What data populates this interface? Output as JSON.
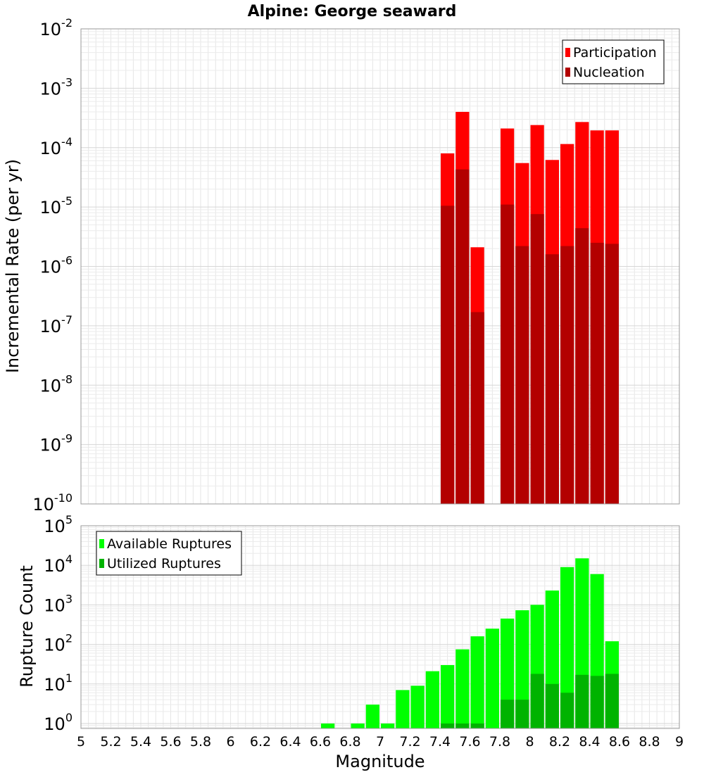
{
  "chart_data": [
    {
      "type": "bar",
      "title": "Alpine: George seaward",
      "xlabel": "",
      "ylabel": "Incremental Rate (per yr)",
      "xlim": [
        5,
        9
      ],
      "ylim": [
        1e-10,
        0.01
      ],
      "yscale": "log",
      "grid": true,
      "bar_width": 0.1,
      "legend": "top-right",
      "colors": {
        "Participation": "#ff0000",
        "Nucleation": "#b30000"
      },
      "x": [
        7.45,
        7.55,
        7.65,
        7.85,
        7.95,
        8.05,
        8.15,
        8.25,
        8.35,
        8.45,
        8.55
      ],
      "series": [
        {
          "name": "Participation",
          "values": [
            8e-05,
            0.0004,
            2.1e-06,
            0.00021,
            5.5e-05,
            0.00024,
            6.2e-05,
            0.000115,
            0.00027,
            0.000195,
            0.000195
          ]
        },
        {
          "name": "Nucleation",
          "values": [
            1.05e-05,
            4.3e-05,
            1.7e-07,
            1.1e-05,
            2.2e-06,
            7.6e-06,
            1.6e-06,
            2.2e-06,
            4.4e-06,
            2.5e-06,
            2.4e-06
          ]
        }
      ],
      "yticks": [
        {
          "mant": "10",
          "exp": "-10",
          "value": 1e-10
        },
        {
          "mant": "10",
          "exp": "-9",
          "value": 1e-09
        },
        {
          "mant": "10",
          "exp": "-8",
          "value": 1e-08
        },
        {
          "mant": "10",
          "exp": "-7",
          "value": 1e-07
        },
        {
          "mant": "10",
          "exp": "-6",
          "value": 1e-06
        },
        {
          "mant": "10",
          "exp": "-5",
          "value": 1e-05
        },
        {
          "mant": "10",
          "exp": "-4",
          "value": 0.0001
        },
        {
          "mant": "10",
          "exp": "-3",
          "value": 0.001
        },
        {
          "mant": "10",
          "exp": "-2",
          "value": 0.01
        }
      ]
    },
    {
      "type": "bar",
      "title": "",
      "xlabel": "Magnitude",
      "ylabel": "Rupture Count",
      "xlim": [
        5,
        9
      ],
      "ylim": [
        0.75,
        100000.0
      ],
      "yscale": "log",
      "grid": true,
      "bar_width": 0.1,
      "legend": "top-left",
      "colors": {
        "Available Ruptures": "#00ff00",
        "Utilized Ruptures": "#00b300"
      },
      "x": [
        6.65,
        6.85,
        6.95,
        7.05,
        7.15,
        7.25,
        7.35,
        7.45,
        7.55,
        7.65,
        7.75,
        7.85,
        7.95,
        8.05,
        8.15,
        8.25,
        8.35,
        8.45,
        8.55
      ],
      "series": [
        {
          "name": "Available Ruptures",
          "values": [
            1,
            1,
            3,
            1,
            7,
            9,
            21,
            30,
            75,
            160,
            250,
            450,
            730,
            1000,
            2300,
            9000,
            15000,
            6000,
            120
          ]
        },
        {
          "name": "Utilized Ruptures",
          "values": [
            0,
            0,
            0,
            0,
            0,
            0,
            0,
            1,
            1,
            1,
            0,
            4,
            4,
            18,
            10,
            6,
            17,
            16,
            18
          ]
        }
      ],
      "yticks": [
        {
          "mant": "10",
          "exp": "0",
          "value": 1
        },
        {
          "mant": "10",
          "exp": "1",
          "value": 10
        },
        {
          "mant": "10",
          "exp": "2",
          "value": 100
        },
        {
          "mant": "10",
          "exp": "3",
          "value": 1000
        },
        {
          "mant": "10",
          "exp": "4",
          "value": 10000
        },
        {
          "mant": "10",
          "exp": "5",
          "value": 100000
        }
      ],
      "xticks": [
        "5",
        "5.2",
        "5.4",
        "5.6",
        "5.8",
        "6",
        "6.2",
        "6.4",
        "6.6",
        "6.8",
        "7",
        "7.2",
        "7.4",
        "7.6",
        "7.8",
        "8",
        "8.2",
        "8.4",
        "8.6",
        "8.8",
        "9"
      ]
    }
  ]
}
